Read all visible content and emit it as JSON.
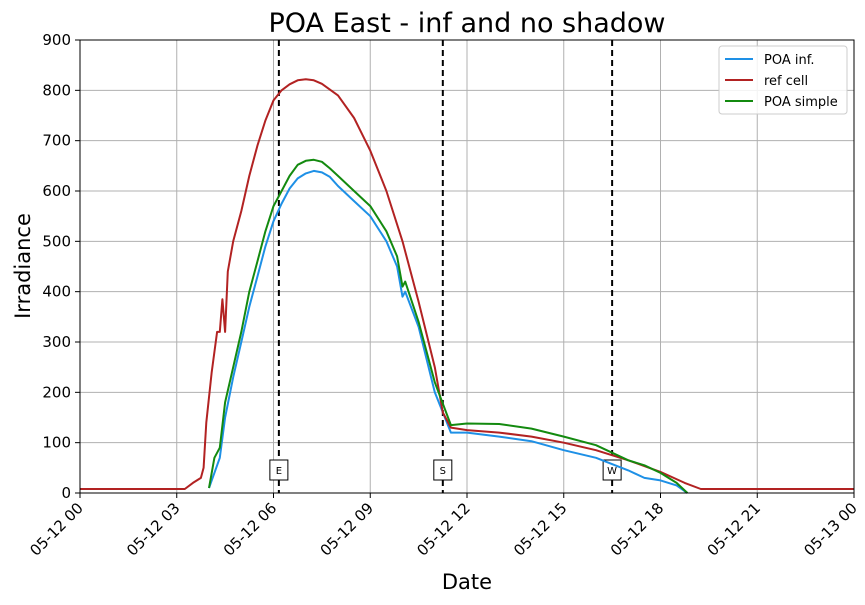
{
  "chart_data": {
    "type": "line",
    "title": "POA East - inf and no shadow",
    "xlabel": "Date",
    "ylabel": "Irradiance",
    "xlim": [
      "05-12 00:00",
      "05-13 00:00"
    ],
    "ylim": [
      0,
      900
    ],
    "grid": true,
    "legend_position": "top-right",
    "x_ticks": [
      "05-12 00",
      "05-12 03",
      "05-12 06",
      "05-12 09",
      "05-12 12",
      "05-12 15",
      "05-12 18",
      "05-12 21",
      "05-13 00"
    ],
    "y_ticks": [
      0,
      100,
      200,
      300,
      400,
      500,
      600,
      700,
      800,
      900
    ],
    "vertical_markers": [
      {
        "label": "E",
        "x": "05-12 06:10"
      },
      {
        "label": "S",
        "x": "05-12 11:15"
      },
      {
        "label": "W",
        "x": "05-12 16:30"
      }
    ],
    "series": [
      {
        "name": "POA inf.",
        "color": "#1e90e6",
        "points": [
          [
            "05-12 04:00",
            10
          ],
          [
            "05-12 04:10",
            40
          ],
          [
            "05-12 04:20",
            70
          ],
          [
            "05-12 04:30",
            150
          ],
          [
            "05-12 04:45",
            230
          ],
          [
            "05-12 05:00",
            300
          ],
          [
            "05-12 05:15",
            370
          ],
          [
            "05-12 05:30",
            430
          ],
          [
            "05-12 05:45",
            490
          ],
          [
            "05-12 06:00",
            540
          ],
          [
            "05-12 06:15",
            575
          ],
          [
            "05-12 06:30",
            605
          ],
          [
            "05-12 06:45",
            625
          ],
          [
            "05-12 07:00",
            635
          ],
          [
            "05-12 07:15",
            640
          ],
          [
            "05-12 07:30",
            637
          ],
          [
            "05-12 07:45",
            628
          ],
          [
            "05-12 08:00",
            610
          ],
          [
            "05-12 08:30",
            580
          ],
          [
            "05-12 09:00",
            550
          ],
          [
            "05-12 09:30",
            500
          ],
          [
            "05-12 09:50",
            450
          ],
          [
            "05-12 10:00",
            390
          ],
          [
            "05-12 10:05",
            400
          ],
          [
            "05-12 10:30",
            330
          ],
          [
            "05-12 11:00",
            200
          ],
          [
            "05-12 11:30",
            120
          ],
          [
            "05-12 12:00",
            120
          ],
          [
            "05-12 13:00",
            112
          ],
          [
            "05-12 14:00",
            103
          ],
          [
            "05-12 15:00",
            85
          ],
          [
            "05-12 16:00",
            70
          ],
          [
            "05-12 17:00",
            45
          ],
          [
            "05-12 17:30",
            30
          ],
          [
            "05-12 18:00",
            25
          ],
          [
            "05-12 18:30",
            15
          ],
          [
            "05-12 18:50",
            0
          ]
        ]
      },
      {
        "name": "ref cell",
        "color": "#b22222",
        "points": [
          [
            "05-12 00:00",
            8
          ],
          [
            "05-12 03:15",
            8
          ],
          [
            "05-12 03:30",
            20
          ],
          [
            "05-12 03:45",
            30
          ],
          [
            "05-12 03:50",
            50
          ],
          [
            "05-12 03:55",
            140
          ],
          [
            "05-12 04:05",
            240
          ],
          [
            "05-12 04:15",
            320
          ],
          [
            "05-12 04:20",
            320
          ],
          [
            "05-12 04:25",
            385
          ],
          [
            "05-12 04:30",
            320
          ],
          [
            "05-12 04:35",
            440
          ],
          [
            "05-12 04:45",
            500
          ],
          [
            "05-12 05:00",
            560
          ],
          [
            "05-12 05:15",
            630
          ],
          [
            "05-12 05:30",
            690
          ],
          [
            "05-12 05:45",
            740
          ],
          [
            "05-12 06:00",
            780
          ],
          [
            "05-12 06:15",
            800
          ],
          [
            "05-12 06:30",
            812
          ],
          [
            "05-12 06:45",
            820
          ],
          [
            "05-12 07:00",
            822
          ],
          [
            "05-12 07:15",
            820
          ],
          [
            "05-12 07:30",
            813
          ],
          [
            "05-12 08:00",
            790
          ],
          [
            "05-12 08:30",
            745
          ],
          [
            "05-12 09:00",
            680
          ],
          [
            "05-12 09:30",
            600
          ],
          [
            "05-12 10:00",
            500
          ],
          [
            "05-12 10:30",
            380
          ],
          [
            "05-12 11:00",
            250
          ],
          [
            "05-12 11:15",
            160
          ],
          [
            "05-12 11:30",
            130
          ],
          [
            "05-12 12:00",
            125
          ],
          [
            "05-12 13:00",
            120
          ],
          [
            "05-12 14:00",
            112
          ],
          [
            "05-12 15:00",
            100
          ],
          [
            "05-12 16:00",
            85
          ],
          [
            "05-12 17:00",
            65
          ],
          [
            "05-12 18:00",
            42
          ],
          [
            "05-12 18:45",
            20
          ],
          [
            "05-12 19:15",
            8
          ],
          [
            "05-13 00:00",
            8
          ]
        ]
      },
      {
        "name": "POA simple",
        "color": "#138a0f",
        "points": [
          [
            "05-12 04:00",
            10
          ],
          [
            "05-12 04:10",
            70
          ],
          [
            "05-12 04:20",
            90
          ],
          [
            "05-12 04:30",
            180
          ],
          [
            "05-12 04:45",
            250
          ],
          [
            "05-12 05:00",
            320
          ],
          [
            "05-12 05:15",
            400
          ],
          [
            "05-12 05:30",
            460
          ],
          [
            "05-12 05:45",
            520
          ],
          [
            "05-12 06:00",
            570
          ],
          [
            "05-12 06:15",
            600
          ],
          [
            "05-12 06:30",
            630
          ],
          [
            "05-12 06:45",
            652
          ],
          [
            "05-12 07:00",
            660
          ],
          [
            "05-12 07:15",
            662
          ],
          [
            "05-12 07:30",
            658
          ],
          [
            "05-12 07:45",
            645
          ],
          [
            "05-12 08:00",
            630
          ],
          [
            "05-12 08:30",
            600
          ],
          [
            "05-12 09:00",
            570
          ],
          [
            "05-12 09:30",
            520
          ],
          [
            "05-12 09:50",
            470
          ],
          [
            "05-12 10:00",
            410
          ],
          [
            "05-12 10:05",
            420
          ],
          [
            "05-12 10:30",
            340
          ],
          [
            "05-12 11:00",
            220
          ],
          [
            "05-12 11:30",
            135
          ],
          [
            "05-12 12:00",
            138
          ],
          [
            "05-12 13:00",
            137
          ],
          [
            "05-12 14:00",
            128
          ],
          [
            "05-12 15:00",
            112
          ],
          [
            "05-12 16:00",
            95
          ],
          [
            "05-12 17:00",
            65
          ],
          [
            "05-12 17:30",
            55
          ],
          [
            "05-12 18:00",
            40
          ],
          [
            "05-12 18:30",
            20
          ],
          [
            "05-12 18:50",
            0
          ]
        ]
      }
    ]
  }
}
